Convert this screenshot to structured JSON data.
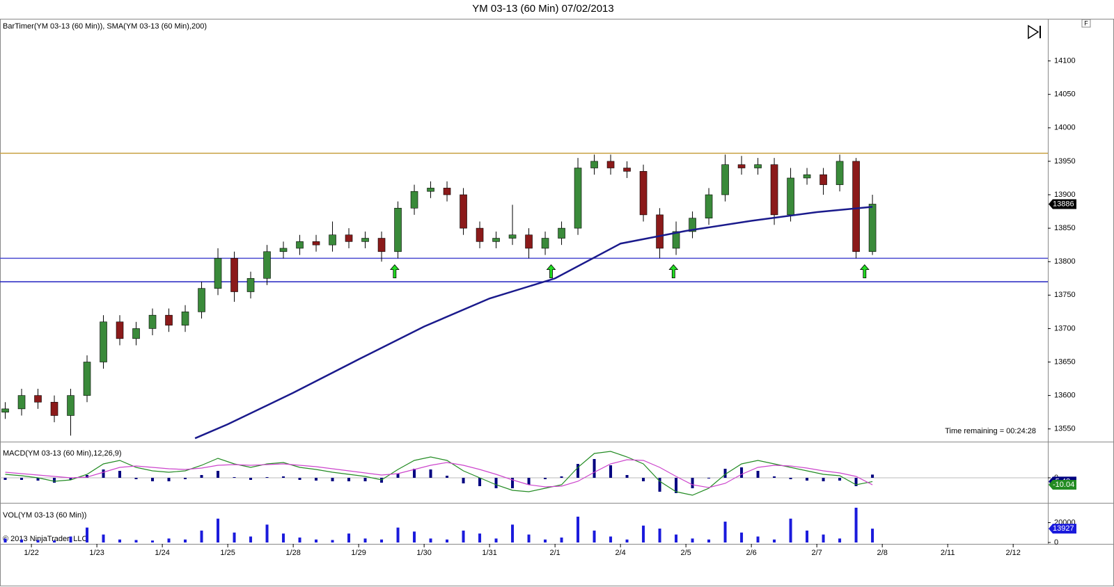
{
  "chart_data": [
    {
      "type": "candlestick",
      "title": "YM 03-13 (60 Min)  07/02/2013",
      "indicator_label": "BarTimer(YM 03-13 (60 Min)), SMA(YM 03-13 (60 Min),200)",
      "timer_text": "Time remaining = 00:24:28",
      "corner_label": "F",
      "x": [
        -0.4,
        -0.15,
        0.1,
        0.35,
        0.6,
        0.85,
        1.1,
        1.35,
        1.6,
        1.85,
        2.1,
        2.35,
        2.6,
        2.85,
        3.1,
        3.35,
        3.6,
        3.85,
        4.1,
        4.35,
        4.6,
        4.85,
        5.1,
        5.35,
        5.6,
        5.85,
        6.1,
        6.35,
        6.6,
        6.85,
        7.1,
        7.35,
        7.6,
        7.85,
        8.1,
        8.35,
        8.6,
        8.85,
        9.1,
        9.35,
        9.6,
        9.85,
        10.1,
        10.35,
        10.6,
        10.85,
        11.1,
        11.35,
        11.6,
        11.85,
        12.1,
        12.35,
        12.6,
        12.85
      ],
      "open": [
        13575,
        13580,
        13600,
        13590,
        13570,
        13600,
        13650,
        13710,
        13685,
        13700,
        13720,
        13705,
        13725,
        13760,
        13805,
        13755,
        13775,
        13815,
        13820,
        13830,
        13825,
        13840,
        13830,
        13835,
        13815,
        13880,
        13905,
        13910,
        13900,
        13850,
        13830,
        13835,
        13840,
        13820,
        13835,
        13850,
        13940,
        13950,
        13940,
        13935,
        13870,
        13820,
        13845,
        13865,
        13900,
        13945,
        13940,
        13945,
        13870,
        13925,
        13930,
        13915,
        13950,
        13815
      ],
      "high": [
        13590,
        13610,
        13610,
        13600,
        13610,
        13660,
        13720,
        13720,
        13710,
        13730,
        13730,
        13735,
        13770,
        13820,
        13815,
        13785,
        13825,
        13830,
        13840,
        13840,
        13860,
        13850,
        13845,
        13845,
        13890,
        13915,
        13920,
        13920,
        13910,
        13860,
        13845,
        13885,
        13850,
        13845,
        13860,
        13955,
        13960,
        13960,
        13950,
        13945,
        13880,
        13860,
        13875,
        13910,
        13960,
        13958,
        13955,
        13955,
        13940,
        13940,
        13940,
        13960,
        13955,
        13900
      ],
      "low": [
        13565,
        13570,
        13580,
        13560,
        13540,
        13590,
        13640,
        13675,
        13675,
        13690,
        13695,
        13695,
        13715,
        13750,
        13740,
        13745,
        13765,
        13805,
        13810,
        13815,
        13815,
        13820,
        13820,
        13800,
        13805,
        13870,
        13895,
        13890,
        13840,
        13820,
        13820,
        13825,
        13805,
        13810,
        13825,
        13840,
        13930,
        13930,
        13925,
        13860,
        13805,
        13810,
        13835,
        13855,
        13890,
        13930,
        13930,
        13855,
        13860,
        13915,
        13900,
        13905,
        13805,
        13810
      ],
      "close": [
        13580,
        13600,
        13590,
        13570,
        13600,
        13650,
        13710,
        13685,
        13700,
        13720,
        13705,
        13725,
        13760,
        13805,
        13755,
        13775,
        13815,
        13820,
        13830,
        13825,
        13840,
        13830,
        13835,
        13815,
        13880,
        13905,
        13910,
        13900,
        13850,
        13830,
        13835,
        13840,
        13820,
        13835,
        13850,
        13940,
        13950,
        13940,
        13935,
        13870,
        13820,
        13845,
        13865,
        13900,
        13945,
        13940,
        13945,
        13870,
        13925,
        13930,
        13915,
        13950,
        13815,
        13886
      ],
      "up_color": "#3a8a3a",
      "down_color": "#8b1a1a",
      "sma": {
        "color": "#1a1a8c",
        "x": [
          2.5,
          3,
          4,
          5,
          6,
          7,
          8,
          9,
          10,
          11,
          12,
          12.85
        ],
        "values": [
          13536,
          13557,
          13604,
          13654,
          13703,
          13745,
          13775,
          13827,
          13846,
          13861,
          13874,
          13882
        ]
      },
      "hlines": [
        {
          "value": 13962,
          "color": "#c8a040"
        },
        {
          "value": 13805,
          "color": "#4a4ad0"
        },
        {
          "value": 13770,
          "color": "#2020c0"
        }
      ],
      "markers": {
        "color": "#22dd22",
        "x": [
          5.55,
          7.94,
          9.81,
          12.73
        ],
        "y": [
          13785,
          13785,
          13785,
          13785
        ]
      },
      "xlim": [
        -0.48,
        15.53
      ],
      "ylim": [
        13531,
        14163
      ],
      "yticks": [
        13550,
        13600,
        13650,
        13700,
        13750,
        13800,
        13850,
        13900,
        13950,
        14000,
        14050,
        14100
      ],
      "xticks": [
        {
          "value": 0,
          "label": "1/22"
        },
        {
          "value": 1,
          "label": "1/23"
        },
        {
          "value": 2,
          "label": "1/24"
        },
        {
          "value": 3,
          "label": "1/25"
        },
        {
          "value": 4,
          "label": "1/28"
        },
        {
          "value": 5,
          "label": "1/29"
        },
        {
          "value": 6,
          "label": "1/30"
        },
        {
          "value": 7,
          "label": "1/31"
        },
        {
          "value": 8,
          "label": "2/1"
        },
        {
          "value": 9,
          "label": "2/4"
        },
        {
          "value": 10,
          "label": "2/5"
        },
        {
          "value": 11,
          "label": "2/6"
        },
        {
          "value": 12,
          "label": "2/7"
        },
        {
          "value": 13,
          "label": "2/8"
        },
        {
          "value": 14,
          "label": "2/11"
        },
        {
          "value": 15,
          "label": "2/12"
        }
      ]
    },
    {
      "type": "line",
      "title": "MACD(YM 03-13 (60 Min),12,26,9)",
      "x": [
        -0.4,
        -0.15,
        0.1,
        0.35,
        0.6,
        0.85,
        1.1,
        1.35,
        1.6,
        1.85,
        2.1,
        2.35,
        2.6,
        2.85,
        3.1,
        3.35,
        3.6,
        3.85,
        4.1,
        4.35,
        4.6,
        4.85,
        5.1,
        5.35,
        5.6,
        5.85,
        6.1,
        6.35,
        6.6,
        6.85,
        7.1,
        7.35,
        7.6,
        7.85,
        8.1,
        8.35,
        8.6,
        8.85,
        9.1,
        9.35,
        9.6,
        9.85,
        10.1,
        10.35,
        10.6,
        10.85,
        11.1,
        11.35,
        11.6,
        11.85,
        12.1,
        12.35,
        12.6,
        12.85
      ],
      "series": [
        {
          "style": "bar",
          "color": "#000080",
          "values": [
            -3,
            -3,
            -4,
            -7,
            -3,
            4,
            12,
            10,
            -2,
            -5,
            -5,
            -2,
            4,
            10,
            1,
            -3,
            1,
            2,
            -3,
            -4,
            -5,
            -5,
            -5,
            -7,
            6,
            13,
            12,
            3,
            -8,
            -12,
            -15,
            -15,
            -10,
            -2,
            2,
            20,
            27,
            18,
            4,
            -5,
            -20,
            -22,
            -15,
            -1,
            13,
            15,
            10,
            2,
            -2,
            -4,
            -5,
            -4,
            -12,
            4.62
          ]
        },
        {
          "style": "line",
          "color": "#228b22",
          "label_color": "#000080",
          "values": [
            5,
            3,
            0,
            -5,
            -3,
            5,
            20,
            25,
            15,
            10,
            8,
            10,
            18,
            28,
            20,
            15,
            20,
            22,
            15,
            12,
            8,
            5,
            2,
            -3,
            12,
            25,
            30,
            25,
            10,
            0,
            -10,
            -18,
            -20,
            -15,
            -10,
            15,
            35,
            38,
            30,
            20,
            -5,
            -20,
            -25,
            -15,
            5,
            20,
            25,
            20,
            15,
            10,
            5,
            3,
            -10,
            -5.42
          ]
        },
        {
          "style": "line",
          "color": "#cc44cc",
          "label_color": "#228b22",
          "values": [
            8,
            6,
            4,
            2,
            0,
            1,
            8,
            15,
            17,
            15,
            13,
            12,
            14,
            18,
            19,
            18,
            19,
            20,
            18,
            16,
            13,
            10,
            7,
            4,
            6,
            12,
            18,
            22,
            18,
            12,
            5,
            -3,
            -10,
            -13,
            -12,
            -5,
            8,
            20,
            26,
            25,
            15,
            2,
            -10,
            -14,
            -8,
            5,
            15,
            18,
            17,
            14,
            10,
            7,
            2,
            -10.04
          ]
        }
      ],
      "xlim": [
        -0.48,
        15.53
      ],
      "ylim": [
        -35,
        50
      ],
      "yticks": [
        0
      ]
    },
    {
      "type": "bar",
      "title": "VOL(YM 03-13 (60 Min))",
      "copyright": "© 2013 NinjaTrader, LLC",
      "x": [
        -0.4,
        -0.15,
        0.1,
        0.35,
        0.6,
        0.85,
        1.1,
        1.35,
        1.6,
        1.85,
        2.1,
        2.35,
        2.6,
        2.85,
        3.1,
        3.35,
        3.6,
        3.85,
        4.1,
        4.35,
        4.6,
        4.85,
        5.1,
        5.35,
        5.6,
        5.85,
        6.1,
        6.35,
        6.6,
        6.85,
        7.1,
        7.35,
        7.6,
        7.85,
        8.1,
        8.35,
        8.6,
        8.85,
        9.1,
        9.35,
        9.6,
        9.85,
        10.1,
        10.35,
        10.6,
        10.85,
        11.1,
        11.35,
        11.6,
        11.85,
        12.1,
        12.35,
        12.6,
        12.85
      ],
      "values": [
        4000,
        3000,
        2500,
        2000,
        6000,
        15000,
        8000,
        3000,
        2500,
        2000,
        4000,
        3000,
        12000,
        24000,
        10000,
        6000,
        18000,
        9000,
        5000,
        3000,
        2500,
        9000,
        4000,
        3000,
        15000,
        11000,
        4000,
        3000,
        12000,
        9000,
        4000,
        18000,
        8000,
        3000,
        5000,
        26000,
        12000,
        6000,
        3000,
        17000,
        14000,
        8000,
        4000,
        3000,
        21000,
        10000,
        6000,
        3000,
        24000,
        12000,
        8000,
        4000,
        35000,
        13927
      ],
      "color": "#1a1adc",
      "xlim": [
        -0.48,
        15.53
      ],
      "ylim": [
        0,
        38500
      ],
      "yticks": [
        0,
        20000
      ]
    }
  ]
}
